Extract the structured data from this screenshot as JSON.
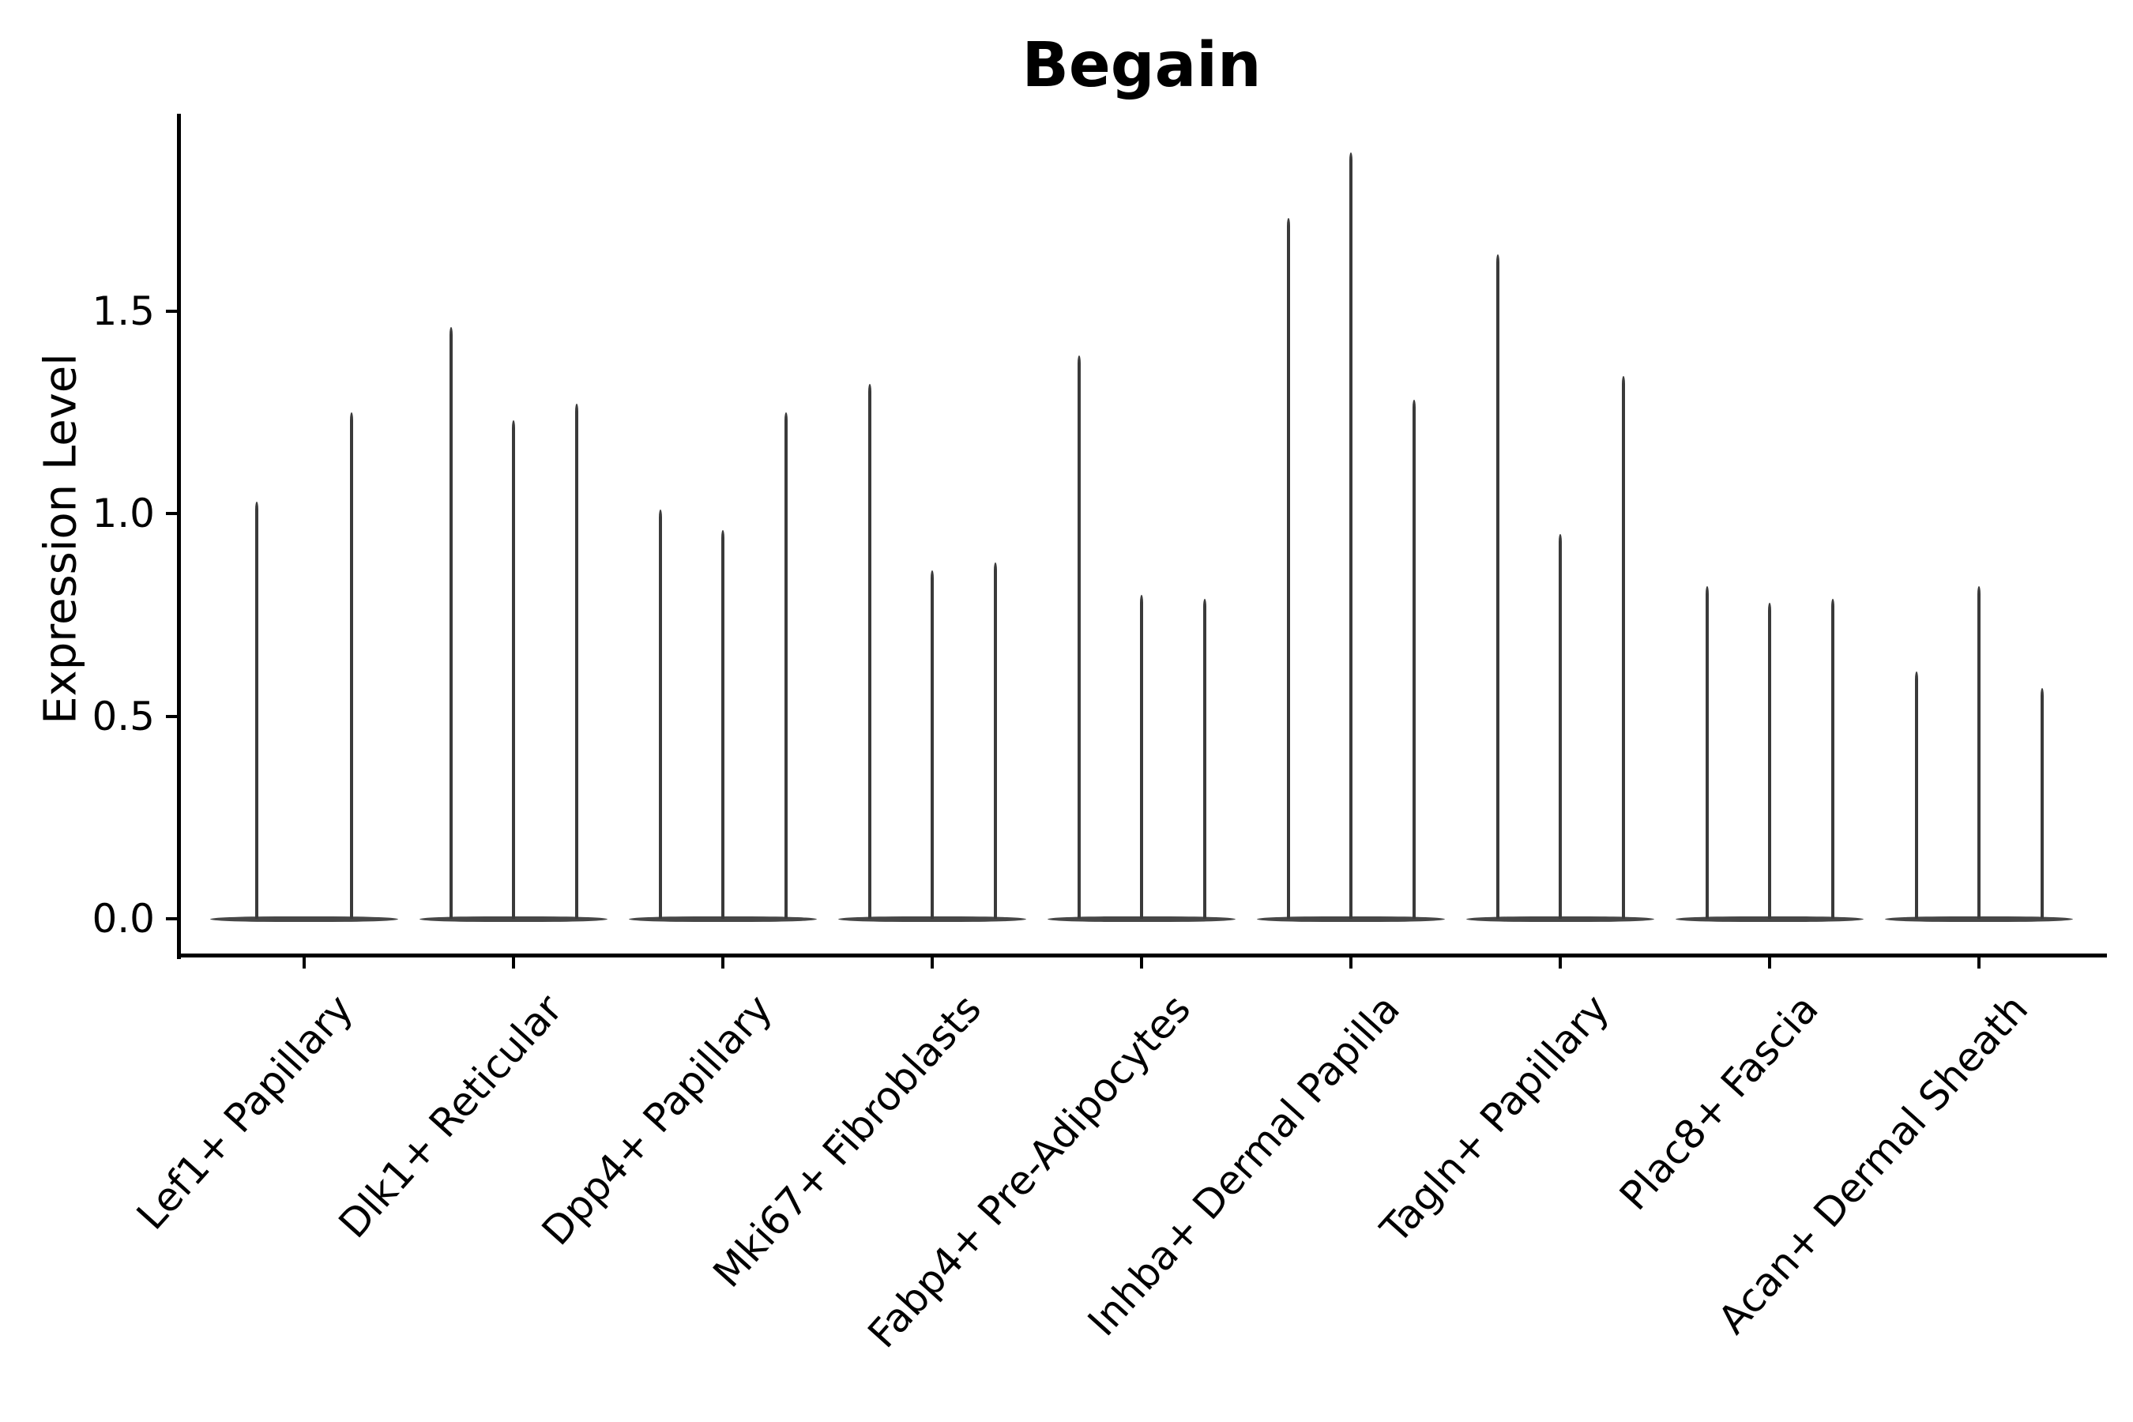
{
  "chart_data": {
    "type": "violin",
    "title": "Begain",
    "ylabel": "Expression Level",
    "xlabel": "",
    "yticks": [
      "0.0",
      "0.5",
      "1.0",
      "1.5"
    ],
    "ytick_values": [
      0.0,
      0.5,
      1.0,
      1.5
    ],
    "ylim": [
      -0.09,
      1.99
    ],
    "grid": false,
    "legend": "none",
    "style_note": "sparse single-cell expression violins: flat wide body at 0 with thin tail spike up to max value; 2-3 split violins per category",
    "categories": [
      "Lef1+ Papillary",
      "Dlk1+ Reticular",
      "Dpp4+ Papillary",
      "Mki67+ Fibroblasts",
      "Fabp4+ Pre-Adipocytes",
      "Inhba+ Dermal Papilla",
      "Tagln+ Papillary",
      "Plac8+ Fascia",
      "Acan+ Dermal Sheath"
    ],
    "violin_max_values": [
      [
        1.03,
        1.25
      ],
      [
        1.46,
        1.23,
        1.27
      ],
      [
        1.01,
        0.96,
        1.25
      ],
      [
        1.32,
        0.86,
        0.88
      ],
      [
        1.39,
        0.8,
        0.79
      ],
      [
        1.73,
        1.89,
        1.28
      ],
      [
        1.64,
        0.95,
        1.34
      ],
      [
        0.82,
        0.78,
        0.79
      ],
      [
        0.61,
        0.82,
        0.57
      ]
    ],
    "violin_baseline_value": 0.0,
    "colors": {
      "violin": "#3a3a3a",
      "violin_body": "#474747",
      "axis": "#000000",
      "text": "#000000",
      "background": "#ffffff"
    }
  }
}
